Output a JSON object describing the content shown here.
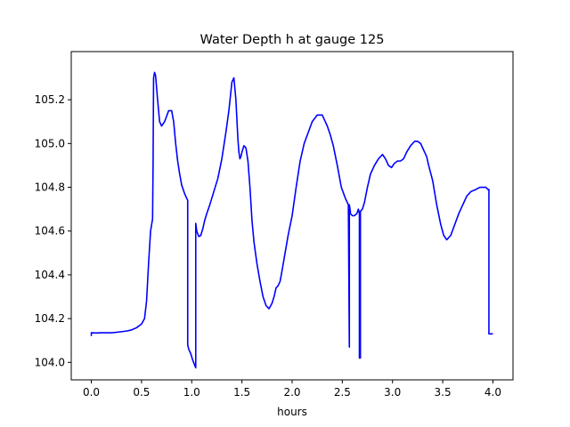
{
  "chart_data": {
    "type": "line",
    "title": "Water Depth h at gauge 125",
    "xlabel": "hours",
    "ylabel": "",
    "xlim": [
      -0.2,
      4.2
    ],
    "ylim": [
      103.92,
      105.42
    ],
    "xticks": [
      0.0,
      0.5,
      1.0,
      1.5,
      2.0,
      2.5,
      3.0,
      3.5,
      4.0
    ],
    "xtick_labels": [
      "0.0",
      "0.5",
      "1.0",
      "1.5",
      "2.0",
      "2.5",
      "3.0",
      "3.5",
      "4.0"
    ],
    "yticks": [
      104.0,
      104.2,
      104.4,
      104.6,
      104.8,
      105.0,
      105.2
    ],
    "ytick_labels": [
      "104.0",
      "104.2",
      "104.4",
      "104.6",
      "104.8",
      "105.0",
      "105.2"
    ],
    "grid": false,
    "series": [
      {
        "color": "#0000ff",
        "x": [
          0.0,
          0.0,
          0.05,
          0.1,
          0.2,
          0.3,
          0.35,
          0.4,
          0.45,
          0.5,
          0.53,
          0.55,
          0.57,
          0.59,
          0.61,
          0.615,
          0.62,
          0.63,
          0.64,
          0.66,
          0.68,
          0.7,
          0.73,
          0.77,
          0.8,
          0.82,
          0.84,
          0.86,
          0.88,
          0.9,
          0.93,
          0.96,
          0.96,
          0.97,
          0.99,
          1.01,
          1.04,
          1.04,
          1.05,
          1.07,
          1.09,
          1.11,
          1.13,
          1.15,
          1.18,
          1.22,
          1.26,
          1.3,
          1.34,
          1.37,
          1.4,
          1.42,
          1.44,
          1.46,
          1.47,
          1.48,
          1.49,
          1.5,
          1.52,
          1.54,
          1.56,
          1.58,
          1.6,
          1.62,
          1.65,
          1.68,
          1.71,
          1.74,
          1.77,
          1.8,
          1.82,
          1.84,
          1.86,
          1.88,
          1.9,
          1.93,
          1.96,
          2.0,
          2.04,
          2.08,
          2.12,
          2.16,
          2.2,
          2.25,
          2.3,
          2.33,
          2.35,
          2.38,
          2.41,
          2.45,
          2.49,
          2.53,
          2.56,
          2.57,
          2.57,
          2.58,
          2.58,
          2.6,
          2.62,
          2.645,
          2.66,
          2.67,
          2.67,
          2.68,
          2.68,
          2.7,
          2.72,
          2.75,
          2.78,
          2.82,
          2.86,
          2.9,
          2.93,
          2.96,
          2.99,
          3.02,
          3.05,
          3.08,
          3.11,
          3.14,
          3.18,
          3.22,
          3.25,
          3.28,
          3.3,
          3.32,
          3.34,
          3.36,
          3.4,
          3.44,
          3.48,
          3.51,
          3.54,
          3.58,
          3.62,
          3.66,
          3.7,
          3.74,
          3.78,
          3.83,
          3.87,
          3.9,
          3.93,
          3.95,
          3.96,
          3.96,
          3.98,
          4.0
        ],
        "y": [
          104.12,
          104.135,
          104.134,
          104.135,
          104.135,
          104.14,
          104.143,
          104.148,
          104.158,
          104.175,
          104.2,
          104.28,
          104.45,
          104.6,
          104.655,
          104.9,
          105.3,
          105.325,
          105.31,
          105.2,
          105.1,
          105.08,
          105.1,
          105.15,
          105.15,
          105.1,
          105.0,
          104.92,
          104.86,
          104.81,
          104.77,
          104.74,
          104.08,
          104.06,
          104.04,
          104.01,
          103.975,
          104.635,
          104.6,
          104.575,
          104.58,
          104.61,
          104.65,
          104.68,
          104.72,
          104.78,
          104.84,
          104.93,
          105.05,
          105.15,
          105.28,
          105.3,
          105.2,
          105.02,
          104.96,
          104.93,
          104.94,
          104.96,
          104.99,
          104.98,
          104.92,
          104.8,
          104.65,
          104.55,
          104.45,
          104.37,
          104.3,
          104.26,
          104.245,
          104.27,
          104.3,
          104.34,
          104.35,
          104.37,
          104.42,
          104.5,
          104.58,
          104.67,
          104.8,
          104.92,
          105.0,
          105.05,
          105.1,
          105.13,
          105.13,
          105.1,
          105.08,
          105.04,
          104.99,
          104.9,
          104.8,
          104.75,
          104.72,
          104.07,
          104.72,
          104.69,
          104.68,
          104.67,
          104.67,
          104.68,
          104.7,
          104.68,
          104.02,
          104.02,
          104.69,
          104.7,
          104.73,
          104.8,
          104.86,
          104.9,
          104.93,
          104.95,
          104.93,
          104.9,
          104.89,
          104.91,
          104.92,
          104.92,
          104.93,
          104.96,
          104.99,
          105.01,
          105.01,
          105.0,
          104.98,
          104.96,
          104.94,
          104.9,
          104.83,
          104.72,
          104.63,
          104.58,
          104.56,
          104.58,
          104.63,
          104.68,
          104.72,
          104.76,
          104.78,
          104.79,
          104.8,
          104.8,
          104.8,
          104.79,
          104.79,
          104.13,
          104.13,
          104.13
        ]
      }
    ]
  }
}
